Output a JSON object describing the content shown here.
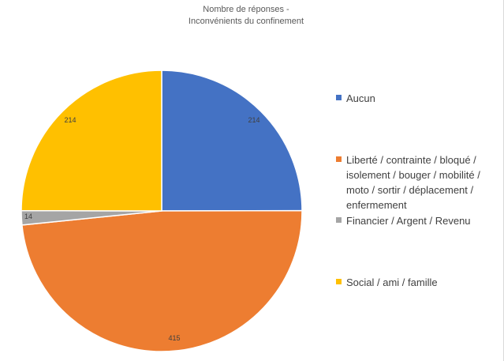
{
  "chart_data": {
    "type": "pie",
    "title": [
      "Nombre de réponses -",
      "Inconvénients du confinement"
    ],
    "slices": [
      {
        "label": "Aucun",
        "value": 214,
        "color": "#4472C4"
      },
      {
        "label": "Liberté / contrainte / bloqué / isolement / bouger / mobilité / moto / sortir / déplacement / enfermement",
        "value": 415,
        "color": "#ED7D31"
      },
      {
        "label": "Financier / Argent / Revenu",
        "value": 14,
        "color": "#A5A5A5"
      },
      {
        "label": "Social / ami / famille",
        "value": 214,
        "color": "#FFC000"
      }
    ],
    "legend": {
      "position": "right",
      "lines": [
        [
          "Aucun"
        ],
        [
          "Liberté / contrainte / bloqué /",
          "isolement / bouger / mobilité /",
          "moto / sortir / déplacement /",
          "enfermement"
        ],
        [
          "Financier / Argent / Revenu"
        ],
        [
          "Social / ami / famille"
        ]
      ]
    }
  }
}
